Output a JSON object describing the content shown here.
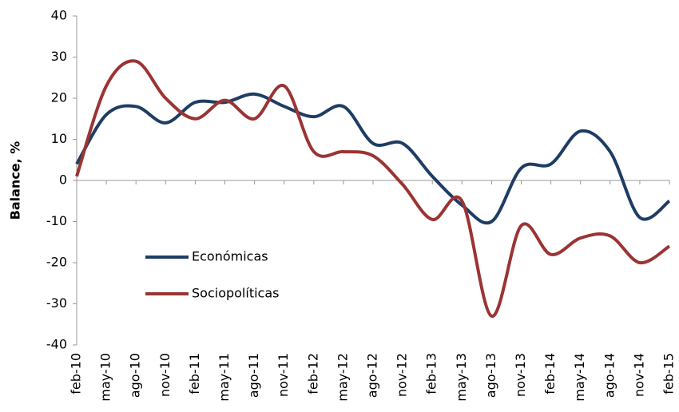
{
  "chart_data": {
    "type": "line",
    "y_label": "Balance, %",
    "categories": [
      "feb-10",
      "may-10",
      "ago-10",
      "nov-10",
      "feb-11",
      "may-11",
      "ago-11",
      "nov-11",
      "feb-12",
      "may-12",
      "ago-12",
      "nov-12",
      "feb-13",
      "may-13",
      "ago-13",
      "nov-13",
      "feb-14",
      "may-14",
      "ago-14",
      "nov-14",
      "feb-15"
    ],
    "series": [
      {
        "name": "Económicas",
        "color": "#1f3d64",
        "values": [
          4,
          16,
          18,
          14,
          19,
          19,
          21,
          18,
          15.5,
          18,
          9,
          9,
          1,
          -6,
          -10,
          3,
          4,
          12,
          7,
          -9,
          -5
        ]
      },
      {
        "name": "Sociopolíticas",
        "color": "#9b3434",
        "values": [
          1,
          23,
          29,
          20,
          15,
          19.5,
          15,
          23,
          7,
          7,
          6,
          -1,
          -9.5,
          -5,
          -33,
          -11,
          -18,
          -14,
          -13.5,
          -20,
          -16
        ]
      }
    ],
    "ylim": [
      -40,
      40
    ],
    "yticks": [
      -40,
      -30,
      -20,
      -10,
      0,
      10,
      20,
      30,
      40
    ],
    "legend": "lower-left"
  }
}
